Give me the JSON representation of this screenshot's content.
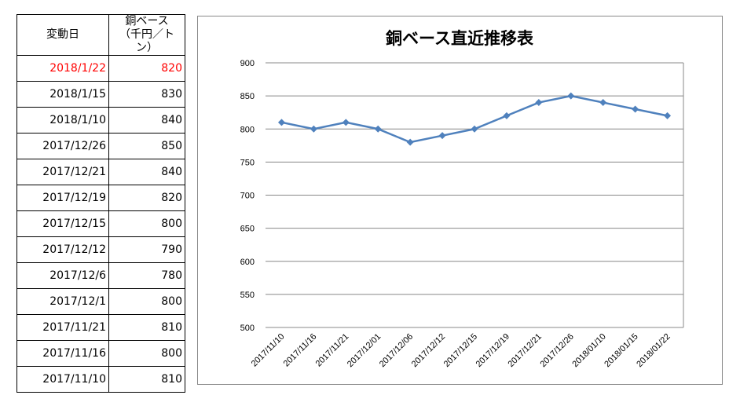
{
  "table": {
    "headers": [
      "変動日",
      "銅ベース",
      "（千円／トン）"
    ],
    "rows": [
      {
        "date": "2018/1/22",
        "value": "820"
      },
      {
        "date": "2018/1/15",
        "value": "830"
      },
      {
        "date": "2018/1/10",
        "value": "840"
      },
      {
        "date": "2017/12/26",
        "value": "850"
      },
      {
        "date": "2017/12/21",
        "value": "840"
      },
      {
        "date": "2017/12/19",
        "value": "820"
      },
      {
        "date": "2017/12/15",
        "value": "800"
      },
      {
        "date": "2017/12/12",
        "value": "790"
      },
      {
        "date": "2017/12/6",
        "value": "780"
      },
      {
        "date": "2017/12/1",
        "value": "800"
      },
      {
        "date": "2017/11/21",
        "value": "810"
      },
      {
        "date": "2017/11/16",
        "value": "800"
      },
      {
        "date": "2017/11/10",
        "value": "810"
      }
    ],
    "highlight_color": "#ff0000"
  },
  "chart_data": {
    "type": "line",
    "title": "銅ベース直近推移表",
    "categories": [
      "2017/11/10",
      "2017/11/16",
      "2017/11/21",
      "2017/12/01",
      "2017/12/06",
      "2017/12/12",
      "2017/12/15",
      "2017/12/19",
      "2017/12/21",
      "2017/12/26",
      "2018/01/10",
      "2018/01/15",
      "2018/01/22"
    ],
    "values": [
      810,
      800,
      810,
      800,
      780,
      790,
      800,
      820,
      840,
      850,
      840,
      830,
      820
    ],
    "ylim": [
      500,
      900
    ],
    "yticks": [
      500,
      550,
      600,
      650,
      700,
      750,
      800,
      850,
      900
    ],
    "grid": true,
    "marker": "diamond",
    "line_color": "#4f81bd"
  }
}
